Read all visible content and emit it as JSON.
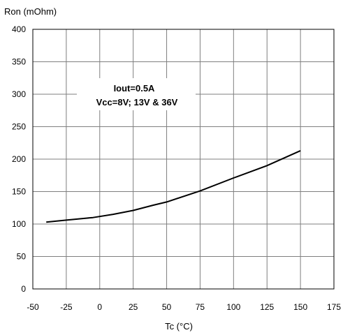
{
  "chart_data": {
    "type": "line",
    "ylabel": "Ron (mOhm)",
    "xlabel": "Tc (°C)",
    "xlim": [
      -50,
      175
    ],
    "ylim": [
      0,
      400
    ],
    "xticks": [
      -50,
      -25,
      0,
      25,
      50,
      75,
      100,
      125,
      150,
      175
    ],
    "yticks": [
      0,
      50,
      100,
      150,
      200,
      250,
      300,
      350,
      400
    ],
    "xtick_labels": [
      "-50",
      "-25",
      "0",
      "25",
      "50",
      "75",
      "100",
      "125",
      "150",
      "175"
    ],
    "ytick_labels": [
      "0",
      "50",
      "100",
      "150",
      "200",
      "250",
      "300",
      "350",
      "400"
    ],
    "grid": true,
    "annotations": [
      "Iout=0.5A",
      "Vcc=8V; 13V & 36V"
    ],
    "series": [
      {
        "x": [
          -40,
          -25,
          -10,
          -5,
          10,
          25,
          40,
          50,
          75,
          100,
          125,
          150
        ],
        "y": [
          103,
          106,
          109,
          110,
          115,
          121,
          129,
          134,
          151,
          171,
          190,
          213
        ],
        "color": "#000000"
      }
    ]
  }
}
